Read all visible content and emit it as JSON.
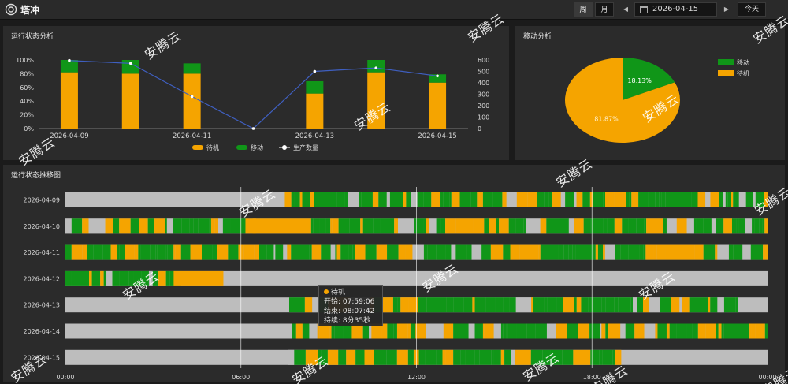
{
  "header": {
    "title": "塔冲",
    "week_label": "周",
    "month_label": "月",
    "prev_glyph": "◀",
    "next_glyph": "▶",
    "date_value": "2026-04-15",
    "today_label": "今天"
  },
  "colors": {
    "standby": "#f5a400",
    "moving": "#109618",
    "idle": "#bdbdbd",
    "production_line": "#3f5fc0"
  },
  "status_chart": {
    "title": "运行状态分析",
    "chart_data": {
      "type": "bar",
      "categories": [
        "2026-04-09",
        "2026-04-10",
        "2026-04-11",
        "2026-04-12",
        "2026-04-13",
        "2026-04-14",
        "2026-04-15"
      ],
      "visible_category_labels": [
        "2026-04-09",
        "2026-04-11",
        "2026-04-13",
        "2026-04-15"
      ],
      "series": [
        {
          "name": "待机",
          "values": [
            0.82,
            0.8,
            0.8,
            0,
            0.51,
            0.82,
            0.67
          ]
        },
        {
          "name": "移动",
          "values": [
            0.18,
            0.2,
            0.15,
            0,
            0.18,
            0.18,
            0.12
          ]
        }
      ],
      "line_series": {
        "name": "生产数量",
        "values": [
          595,
          570,
          280,
          0,
          500,
          530,
          460
        ]
      },
      "y_left_ticks": [
        "0%",
        "20%",
        "40%",
        "60%",
        "80%",
        "100%"
      ],
      "y_right_ticks": [
        "0",
        "100",
        "200",
        "300",
        "400",
        "500",
        "600"
      ],
      "ylim": [
        0,
        1
      ],
      "y2lim": [
        0,
        600
      ],
      "legend": [
        "待机",
        "移动",
        "生产数量"
      ],
      "legend_position": "bottom"
    }
  },
  "move_chart": {
    "title": "移动分析",
    "chart_data": {
      "type": "pie",
      "labels": [
        "移动",
        "待机"
      ],
      "values": [
        18.13,
        81.87
      ],
      "data_labels": [
        "18.13%",
        "81.87%"
      ],
      "legend_position": "top-right"
    }
  },
  "trend_chart": {
    "title": "运行状态推移图",
    "chart_data": {
      "type": "timeline",
      "rows": [
        "2026-04-09",
        "2026-04-10",
        "2026-04-11",
        "2026-04-12",
        "2026-04-13",
        "2026-04-14",
        "2026-04-15"
      ],
      "x_ticks": [
        "00:00",
        "06:00",
        "12:00",
        "18:00",
        "00:00"
      ],
      "x_range_hours": [
        0,
        24
      ],
      "active_spans_hours": [
        [
          7.5,
          24
        ],
        [
          0,
          24
        ],
        [
          0,
          24
        ],
        [
          0,
          5.4
        ],
        [
          7.65,
          23.0
        ],
        [
          7.75,
          24
        ],
        [
          7.6,
          19.0
        ]
      ],
      "long_standby_blocks_hours": [
        [
          6.4,
          8.4
        ],
        [
          6.8,
          8.2
        ],
        [
          3.7,
          5.4
        ]
      ]
    }
  },
  "tooltip": {
    "title": "待机",
    "start": "开始: 07:59:06",
    "end": "结束: 08:07:42",
    "duration": "持续: 8分35秒"
  },
  "watermarks": [
    {
      "text": "安腾云"
    },
    {
      "text": "安腾云"
    },
    {
      "text": "安腾云"
    },
    {
      "text": "安腾云"
    },
    {
      "text": "安腾云"
    },
    {
      "text": "安腾云"
    },
    {
      "text": "安腾云"
    },
    {
      "text": "安腾云"
    },
    {
      "text": "安腾云"
    },
    {
      "text": "安腾云"
    },
    {
      "text": "安腾云"
    },
    {
      "text": "安腾云"
    },
    {
      "text": "安腾云"
    },
    {
      "text": "安腾云"
    },
    {
      "text": "安腾云"
    },
    {
      "text": "安腾云"
    },
    {
      "text": "安腾云"
    }
  ]
}
